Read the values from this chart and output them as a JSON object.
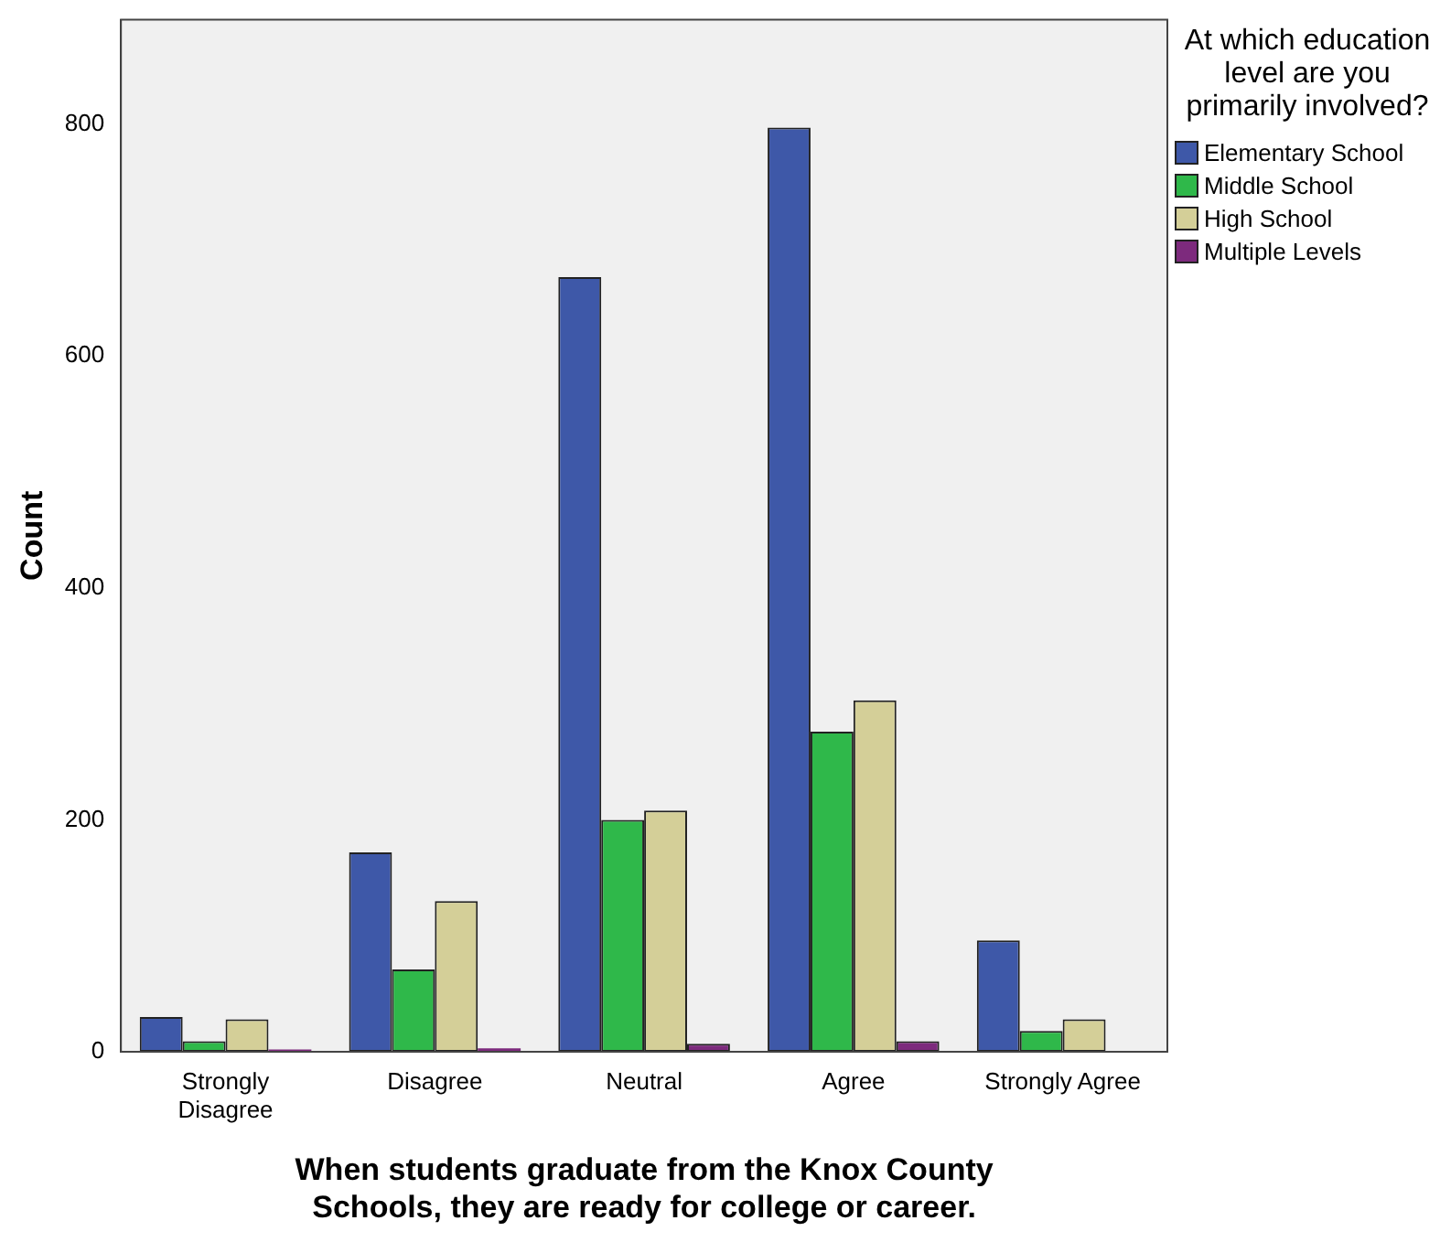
{
  "chart_data": {
    "type": "bar",
    "xlabel": "When students graduate from the Knox County Schools, they are ready for college or career.",
    "ylabel": "Count",
    "legend_title": "At which education level are you primarily involved?",
    "legend": "top right",
    "categories": [
      "Strongly Disagree",
      "Disagree",
      "Neutral",
      "Agree",
      "Strongly Agree"
    ],
    "series": [
      {
        "name": "Elementary School",
        "color": "#3e58a8",
        "values": [
          30,
          172,
          668,
          797,
          96
        ]
      },
      {
        "name": "Middle School",
        "color": "#2fb84a",
        "values": [
          9,
          71,
          200,
          276,
          18
        ]
      },
      {
        "name": "High School",
        "color": "#d4cf98",
        "values": [
          28,
          130,
          208,
          303,
          28
        ]
      },
      {
        "name": "Multiple Levels",
        "color": "#7d2a7d",
        "values": [
          2,
          3,
          7,
          9,
          0
        ]
      }
    ],
    "ylim": [
      0,
      890
    ],
    "yticks": [
      0,
      200,
      400,
      600,
      800
    ],
    "grid": false
  }
}
